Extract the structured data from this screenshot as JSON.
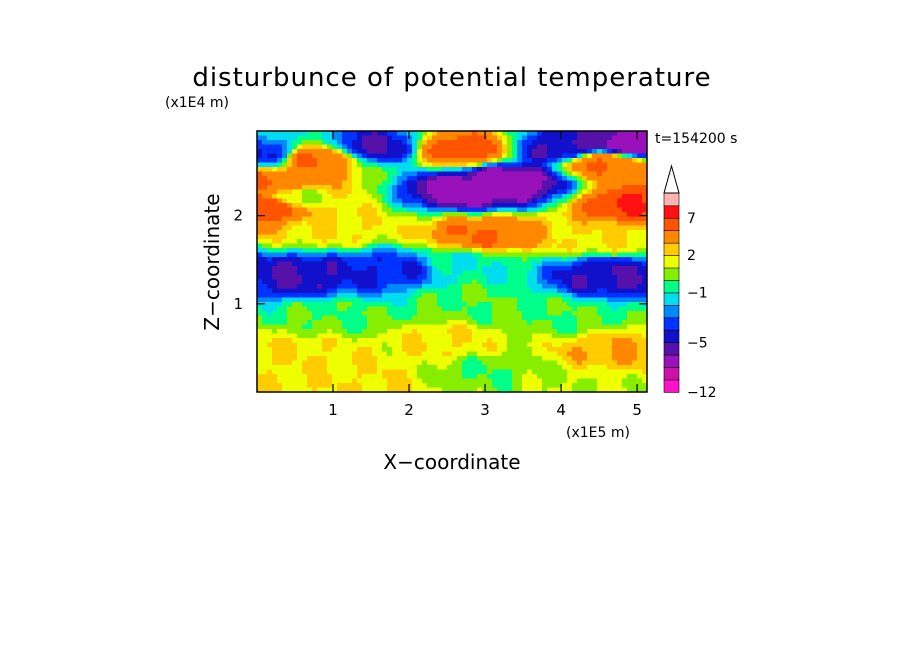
{
  "chart_data": {
    "type": "heatmap",
    "title": "disturbunce of potential temperature",
    "xlabel": "X−coordinate",
    "ylabel": "Z−coordinate",
    "x_unit": "(x1E5 m)",
    "y_unit": "(x1E4 m)",
    "annotation": "t=154200 s",
    "x_ticks": [
      "1",
      "2",
      "3",
      "4",
      "5"
    ],
    "y_ticks": [
      "1",
      "2"
    ],
    "xlim": [
      0,
      5.13
    ],
    "ylim": [
      0,
      2.96
    ],
    "colorbar": {
      "labels": [
        {
          "value": 7,
          "text": "7"
        },
        {
          "value": 2,
          "text": "2"
        },
        {
          "value": -1,
          "text": "−1"
        },
        {
          "value": -5,
          "text": "−5"
        },
        {
          "value": -12,
          "text": "−12"
        }
      ],
      "levels": [
        -12,
        -10,
        -8,
        -6,
        -5,
        -4,
        -3,
        -2,
        -1,
        0,
        1,
        2,
        3,
        5,
        7,
        9,
        12
      ],
      "colors": [
        "#ff11cc",
        "#cc11aa",
        "#9911bb",
        "#5511aa",
        "#1111cc",
        "#0033ff",
        "#0088ff",
        "#00ddee",
        "#00ff88",
        "#88ee00",
        "#eeff00",
        "#ffcc00",
        "#ff8800",
        "#ff5500",
        "#ff1111",
        "#ffb2b2",
        "#ffffff"
      ],
      "overflow": "triangle"
    },
    "features": [
      {
        "x": 0.25,
        "z": 2.38,
        "value": 5
      },
      {
        "x": 0.75,
        "z": 2.65,
        "value": 5
      },
      {
        "x": 0.5,
        "z": 2.2,
        "value": 1
      },
      {
        "x": 2.7,
        "z": 2.75,
        "value": 6
      },
      {
        "x": 4.55,
        "z": 2.6,
        "value": 5
      },
      {
        "x": 3.35,
        "z": 2.4,
        "value": -7
      },
      {
        "x": 2.8,
        "z": 2.3,
        "value": -7
      },
      {
        "x": 1.55,
        "z": 2.78,
        "value": -5
      },
      {
        "x": 0.1,
        "z": 2.7,
        "value": -4
      },
      {
        "x": 4.0,
        "z": 2.75,
        "value": -5
      },
      {
        "x": 4.9,
        "z": 2.8,
        "value": -7
      },
      {
        "x": 0.1,
        "z": 2.12,
        "value": 7
      },
      {
        "x": 5.05,
        "z": 2.12,
        "value": 7
      },
      {
        "x": 3.0,
        "z": 1.78,
        "value": 5
      },
      {
        "x": 4.5,
        "z": 1.75,
        "value": 2
      },
      {
        "x": 1.0,
        "z": 1.85,
        "value": 2
      },
      {
        "x": 2.8,
        "z": 1.45,
        "value": -1
      },
      {
        "x": 0.6,
        "z": 1.32,
        "value": -5
      },
      {
        "x": 1.7,
        "z": 1.38,
        "value": -4
      },
      {
        "x": 4.6,
        "z": 1.32,
        "value": -5
      },
      {
        "x": 2.8,
        "z": 1.05,
        "value": 0
      },
      {
        "x": 1.0,
        "z": 0.85,
        "value": 0
      },
      {
        "x": 4.0,
        "z": 0.85,
        "value": 0
      },
      {
        "x": 2.5,
        "z": 0.55,
        "value": 2
      },
      {
        "x": 0.5,
        "z": 0.45,
        "value": 2
      },
      {
        "x": 4.7,
        "z": 0.45,
        "value": 3
      },
      {
        "x": 3.0,
        "z": 0.25,
        "value": 0
      },
      {
        "x": 1.5,
        "z": 0.15,
        "value": 2
      },
      {
        "x": 4.2,
        "z": 0.1,
        "value": 1
      }
    ]
  }
}
